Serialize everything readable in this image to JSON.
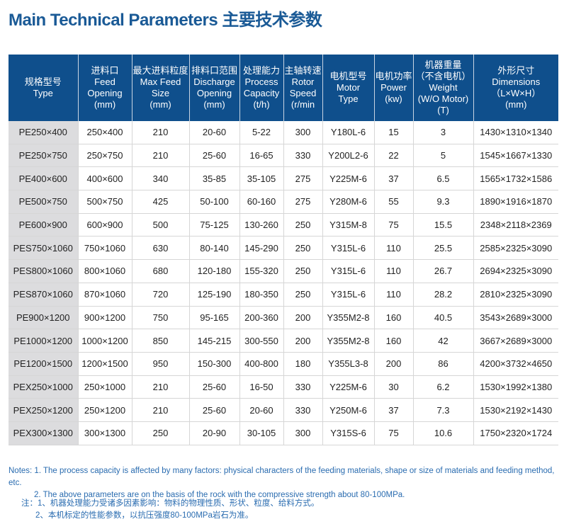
{
  "title": "Main Technical Parameters 主要技术参数",
  "columns": [
    [
      "规格型号",
      "Type"
    ],
    [
      "进料口",
      "Feed",
      "Opening",
      "(mm)"
    ],
    [
      "最大进料粒度",
      "Max Feed",
      "Size",
      "(mm)"
    ],
    [
      "排料口范围",
      "Discharge",
      "Opening",
      "(mm)"
    ],
    [
      "处理能力",
      "Process",
      "Capacity",
      "(t/h)"
    ],
    [
      "主轴转速",
      "Rotor",
      "Speed",
      "(r/min"
    ],
    [
      "电机型号",
      "Motor",
      "Type"
    ],
    [
      "电机功率",
      "Power",
      "(kw)"
    ],
    [
      "机器重量",
      "（不含电机）",
      "Weight",
      "(W/O Motor)",
      "(T)"
    ],
    [
      "外形尺寸",
      "Dimensions",
      "（L×W×H）",
      "(mm)"
    ]
  ],
  "rows": [
    [
      "PE250×400",
      "250×400",
      "210",
      "20-60",
      "5-22",
      "300",
      "Y180L-6",
      "15",
      "3",
      "1430×1310×1340"
    ],
    [
      "PE250×750",
      "250×750",
      "210",
      "25-60",
      "16-65",
      "330",
      "Y200L2-6",
      "22",
      "5",
      "1545×1667×1330"
    ],
    [
      "PE400×600",
      "400×600",
      "340",
      "35-85",
      "35-105",
      "275",
      "Y225M-6",
      "37",
      "6.5",
      "1565×1732×1586"
    ],
    [
      "PE500×750",
      "500×750",
      "425",
      "50-100",
      "60-160",
      "275",
      "Y280M-6",
      "55",
      "9.3",
      "1890×1916×1870"
    ],
    [
      "PE600×900",
      "600×900",
      "500",
      "75-125",
      "130-260",
      "250",
      "Y315M-8",
      "75",
      "15.5",
      "2348×2118×2369"
    ],
    [
      "PES750×1060",
      "750×1060",
      "630",
      "80-140",
      "145-290",
      "250",
      "Y315L-6",
      "110",
      "25.5",
      "2585×2325×3090"
    ],
    [
      "PES800×1060",
      "800×1060",
      "680",
      "120-180",
      "155-320",
      "250",
      "Y315L-6",
      "110",
      "26.7",
      "2694×2325×3090"
    ],
    [
      "PES870×1060",
      "870×1060",
      "720",
      "125-190",
      "180-350",
      "250",
      "Y315L-6",
      "110",
      "28.2",
      "2810×2325×3090"
    ],
    [
      "PE900×1200",
      "900×1200",
      "750",
      "95-165",
      "200-360",
      "200",
      "Y355M2-8",
      "160",
      "40.5",
      "3543×2689×3000"
    ],
    [
      "PE1000×1200",
      "1000×1200",
      "850",
      "145-215",
      "300-550",
      "200",
      "Y355M2-8",
      "160",
      "42",
      "3667×2689×3000"
    ],
    [
      "PE1200×1500",
      "1200×1500",
      "950",
      "150-300",
      "400-800",
      "180",
      "Y355L3-8",
      "200",
      "86",
      "4200×3732×4650"
    ],
    [
      "PEX250×1000",
      "250×1000",
      "210",
      "25-60",
      "16-50",
      "330",
      "Y225M-6",
      "30",
      "6.2",
      "1530×1992×1380"
    ],
    [
      "PEX250×1200",
      "250×1200",
      "210",
      "25-60",
      "20-60",
      "330",
      "Y250M-6",
      "37",
      "7.3",
      "1530×2192×1430"
    ],
    [
      "PEX300×1300",
      "300×1300",
      "250",
      "20-90",
      "30-105",
      "300",
      "Y315S-6",
      "75",
      "10.6",
      "1750×2320×1724"
    ]
  ],
  "notes_en": [
    "Notes: 1. The process capacity is affected by many factors: physical characters of the feeding materials, shape or size of materials and feeding method, etc.",
    "2. The above parameters are on the basis of the rock with the compressive strength about 80-100MPa."
  ],
  "notes_cn": [
    "注：1、机器处理能力受诸多因素影响：物料的物理性质、形状、粒度、给料方式。",
    "2、本机标定的性能参数，以抗压强度80-100MPa岩石为准。"
  ]
}
